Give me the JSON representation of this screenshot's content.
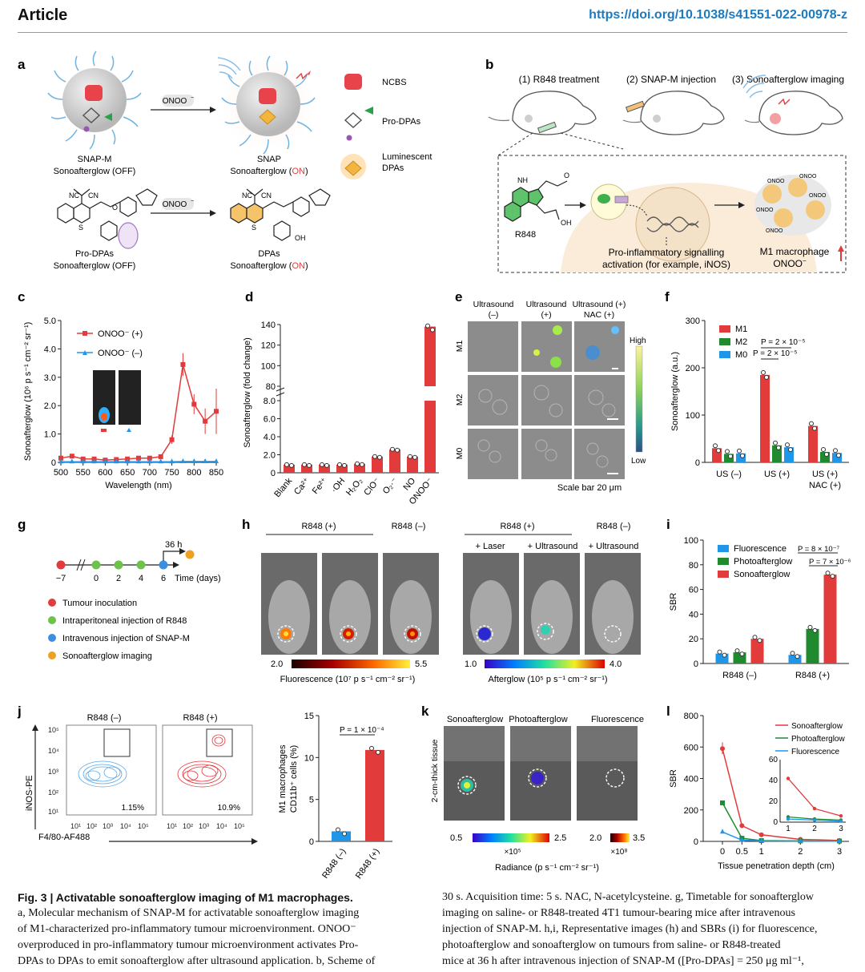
{
  "header": {
    "journal_label": "Article",
    "doi": "https://doi.org/10.1038/s41551-022-00978-z"
  },
  "panels": {
    "a": {
      "letter": "a",
      "arrow_label": "ONOO",
      "arrow_label_sup": "−",
      "snapm_line1": "SNAP-M",
      "snapm_line2": "Sonoafterglow (OFF)",
      "snap_line1": "SNAP",
      "snap_line2_prefix": "Sonoafterglow (",
      "snap_line2_on": "ON",
      "snap_line2_suffix": ")",
      "legend": [
        "NCBS",
        "Pro-DPAs",
        "Luminescent",
        "DPAs"
      ],
      "prodpas_line1": "Pro-DPAs",
      "prodpas_line2": "Sonoafterglow (OFF)",
      "dpas_line1": "DPAs",
      "dpas_line2_prefix": "Sonoafterglow (",
      "dpas_line2_on": "ON",
      "dpas_line2_suffix": ")",
      "struct_labels": [
        "NC",
        "CN",
        "S",
        "O",
        "OH",
        "R"
      ]
    },
    "b": {
      "letter": "b",
      "steps": [
        "(1) R848 treatment",
        "(2) SNAP-M injection",
        "(3) Sonoafterglow imaging"
      ],
      "compound": "R848",
      "signalling_line1": "Pro-inflammatory signalling",
      "signalling_line2": "activation (for example, iNOS)",
      "m1_line1": "M1 macrophage",
      "m1_line2": "ONOO",
      "m1_line2_sup": "−",
      "cell_label": "ONOO",
      "struct_labels": [
        "NH",
        "N",
        "OH",
        "O"
      ]
    },
    "c": {
      "letter": "c",
      "ylabel": "Sonoafterglow (10",
      "ylabel_full": "Sonoafterglow (10⁶ p s⁻¹ cm⁻² sr⁻¹)",
      "xlabel": "Wavelength (nm)",
      "legend_pos": "ONOO⁻ (+)",
      "legend_neg": "ONOO⁻ (–)"
    },
    "d": {
      "letter": "d",
      "ylabel": "Sonoafterglow (fold change)"
    },
    "e": {
      "letter": "e",
      "col_headers": [
        [
          "Ultrasound",
          "(–)"
        ],
        [
          "Ultrasound",
          "(+)"
        ],
        [
          "Ultrasound (+)",
          "NAC (+)"
        ]
      ],
      "row_labels": [
        "M1",
        "M2",
        "M0"
      ],
      "scale_high": "High",
      "scale_low": "Low",
      "scale_bar": "Scale bar 20 μm"
    },
    "f": {
      "letter": "f",
      "ylabel": "Sonoafterglow (a.u.)",
      "legend": [
        "M1",
        "M2",
        "M0"
      ],
      "pvalues": [
        "P = 2 × 10⁻⁵",
        "P = 2 × 10⁻⁵"
      ],
      "xlabels": [
        [
          "US (–)"
        ],
        [
          "US (+)"
        ],
        [
          "US (+)",
          "NAC (+)"
        ]
      ]
    },
    "g": {
      "letter": "g",
      "days": [
        "−7",
        "0",
        "2",
        "4",
        "6"
      ],
      "after": "36 h",
      "axis_label": "Time (days)",
      "legend": [
        "Tumour inoculation",
        "Intraperitoneal injection of R848",
        "Intravenous injection of SNAP-M",
        "Sonoafterglow imaging"
      ]
    },
    "h": {
      "letter": "h",
      "groups": [
        "R848 (+)",
        "R848 (–)",
        "R848 (+)",
        "R848 (–)"
      ],
      "sub_labels": [
        "+ Laser",
        "+ Ultrasound",
        "+ Ultrasound"
      ],
      "fl_min": "2.0",
      "fl_max": "5.5",
      "fl_label": "Fluorescence (10⁷ p s⁻¹ cm⁻² sr⁻¹)",
      "ag_min": "1.0",
      "ag_max": "4.0",
      "ag_label": "Afterglow (10⁵ p s⁻¹ cm⁻² sr⁻¹)"
    },
    "i": {
      "letter": "i",
      "ylabel": "SBR",
      "legend": [
        "Fluorescence",
        "Photoafterglow",
        "Sonoafterglow"
      ],
      "pvalues": [
        "P = 8 × 10⁻⁷",
        "P = 7 × 10⁻⁶"
      ]
    },
    "j": {
      "letter": "j",
      "group_titles": [
        "R848 (–)",
        "R848 (+)"
      ],
      "percents": [
        "1.15%",
        "10.9%"
      ],
      "ylabel": "iNOS-PE",
      "xlabel": "F4/80-AF488",
      "bar_ylabel_line1": "M1 macrophages",
      "bar_ylabel_line2": "CD11b⁺ cells (%)",
      "pvalue": "P = 1 × 10⁻⁴"
    },
    "k": {
      "letter": "k",
      "col_headers": [
        "Sonoafterglow",
        "Photoafterglow",
        "Fluorescence"
      ],
      "side_label": "2-cm-thick tissue",
      "scale1_min": "0.5",
      "scale1_max": "2.5",
      "scale1_mult": "×10⁵",
      "scale2_min": "2.0",
      "scale2_max": "3.5",
      "scale2_mult": "×10⁸",
      "radiance_label": "Radiance (p s⁻¹ cm⁻² sr⁻¹)"
    },
    "l": {
      "letter": "l",
      "ylabel": "SBR",
      "xlabel": "Tissue penetration depth (cm)"
    }
  },
  "chart_data": [
    {
      "type": "line",
      "panel": "c",
      "x": [
        500,
        525,
        550,
        575,
        600,
        625,
        650,
        675,
        700,
        725,
        750,
        775,
        800,
        825,
        850
      ],
      "series": [
        {
          "name": "ONOO⁻ (+)",
          "values": [
            0.15,
            0.22,
            0.12,
            0.12,
            0.08,
            0.1,
            0.12,
            0.15,
            0.15,
            0.2,
            0.8,
            3.45,
            2.05,
            1.45,
            1.8
          ]
        },
        {
          "name": "ONOO⁻ (–)",
          "values": [
            0.02,
            0.02,
            0.02,
            0.02,
            0.02,
            0.02,
            0.02,
            0.02,
            0.02,
            0.02,
            0.02,
            0.03,
            0.03,
            0.03,
            0.03
          ]
        }
      ],
      "xlabel": "Wavelength (nm)",
      "ylabel": "Sonoafterglow (10⁶ p s⁻¹ cm⁻² sr⁻¹)",
      "xlim": [
        500,
        850
      ],
      "ylim": [
        0,
        5.0
      ],
      "xticks": [
        "500",
        "550",
        "600",
        "650",
        "700",
        "750",
        "800",
        "850"
      ],
      "yticks": [
        "0",
        "1.0",
        "2.0",
        "3.0",
        "4.0",
        "5.0"
      ]
    },
    {
      "type": "bar",
      "panel": "d",
      "categories": [
        "Blank",
        "Ca²⁺",
        "Fe²⁺",
        "·OH",
        "H₂O₂",
        "ClO⁻",
        "O₂·⁻",
        "NO",
        "ONOO⁻"
      ],
      "values": [
        0.9,
        0.9,
        0.9,
        0.9,
        1.0,
        1.8,
        2.6,
        1.8,
        138
      ],
      "ylabel": "Sonoafterglow (fold change)",
      "yticks_lower": [
        "0",
        "2.0",
        "4.0",
        "6.0",
        "8.0"
      ],
      "yticks_upper": [
        "80",
        "100",
        "120",
        "140"
      ]
    },
    {
      "type": "bar",
      "panel": "f",
      "categories": [
        "US (–)",
        "US (+)",
        "US (+) NAC (+)"
      ],
      "series": [
        {
          "name": "M1",
          "values": [
            30,
            185,
            77
          ]
        },
        {
          "name": "M2",
          "values": [
            18,
            36,
            22
          ]
        },
        {
          "name": "M0",
          "values": [
            19,
            32,
            20
          ]
        }
      ],
      "ylabel": "Sonoafterglow (a.u.)",
      "ylim": [
        0,
        300
      ],
      "yticks": [
        "0",
        "100",
        "200",
        "300"
      ]
    },
    {
      "type": "bar",
      "panel": "i",
      "categories": [
        "R848 (–)",
        "R848 (+)"
      ],
      "series": [
        {
          "name": "Fluorescence",
          "values": [
            8,
            7
          ]
        },
        {
          "name": "Photoafterglow",
          "values": [
            9,
            28
          ]
        },
        {
          "name": "Sonoafterglow",
          "values": [
            20,
            72
          ]
        }
      ],
      "ylabel": "SBR",
      "ylim": [
        0,
        100
      ],
      "yticks": [
        "0",
        "20",
        "40",
        "60",
        "80",
        "100"
      ]
    },
    {
      "type": "bar",
      "panel": "j",
      "categories": [
        "R848 (–)",
        "R848 (+)"
      ],
      "values": [
        1.2,
        10.9
      ],
      "ylabel": "M1 macrophages CD11b⁺ cells (%)",
      "ylim": [
        0,
        15
      ],
      "yticks": [
        "0",
        "5",
        "10",
        "15"
      ]
    },
    {
      "type": "line",
      "panel": "l",
      "x": [
        0,
        0.5,
        1,
        2,
        3
      ],
      "series": [
        {
          "name": "Sonoafterglow",
          "values": [
            590,
            100,
            42,
            13,
            6
          ]
        },
        {
          "name": "Photoafterglow",
          "values": [
            245,
            20,
            5,
            3,
            2
          ]
        },
        {
          "name": "Fluorescence",
          "values": [
            60,
            8,
            3,
            2,
            1
          ]
        }
      ],
      "xlabel": "Tissue penetration depth (cm)",
      "ylabel": "SBR",
      "ylim": [
        0,
        800
      ],
      "xticks": [
        "0",
        "0.5",
        "1",
        "2",
        "3"
      ],
      "yticks": [
        "0",
        "200",
        "400",
        "600",
        "800"
      ],
      "inset": {
        "xticks": [
          "1",
          "2",
          "3"
        ],
        "yticks": [
          "0",
          "20",
          "40",
          "60"
        ],
        "ylim": [
          0,
          60
        ]
      }
    }
  ],
  "caption": {
    "title": "Fig. 3 | Activatable sonoafterglow imaging of M1 macrophages.",
    "left_lines": [
      "a, Molecular mechanism of SNAP-M for activatable sonoafterglow imaging",
      "of M1-characterized pro-inflammatory tumour microenvironment. ONOO⁻",
      "overproduced in pro-inflammatory tumour microenvironment activates Pro-",
      "DPAs to DPAs to emit sonoafterglow after ultrasound application. b, Scheme of"
    ],
    "right_lines": [
      "30 s. Acquisition time: 5 s. NAC, N-acetylcysteine. g, Timetable for sonoafterglow",
      "imaging on saline- or R848-treated 4T1 tumour-bearing mice after intravenous",
      "injection of SNAP-M. h,i, Representative images (h) and SBRs (i) for fluorescence,",
      "photoafterglow and sonoafterglow on tumours from saline- or R848-treated",
      "mice at 36 h after intravenous injection of SNAP-M ([Pro-DPAs] = 250 μg ml⁻¹,"
    ]
  },
  "colors": {
    "red": "#e23b3b",
    "green": "#1f8a2e",
    "blue": "#1f96e8",
    "orange": "#f0a020",
    "link": "#1c7bc0"
  }
}
